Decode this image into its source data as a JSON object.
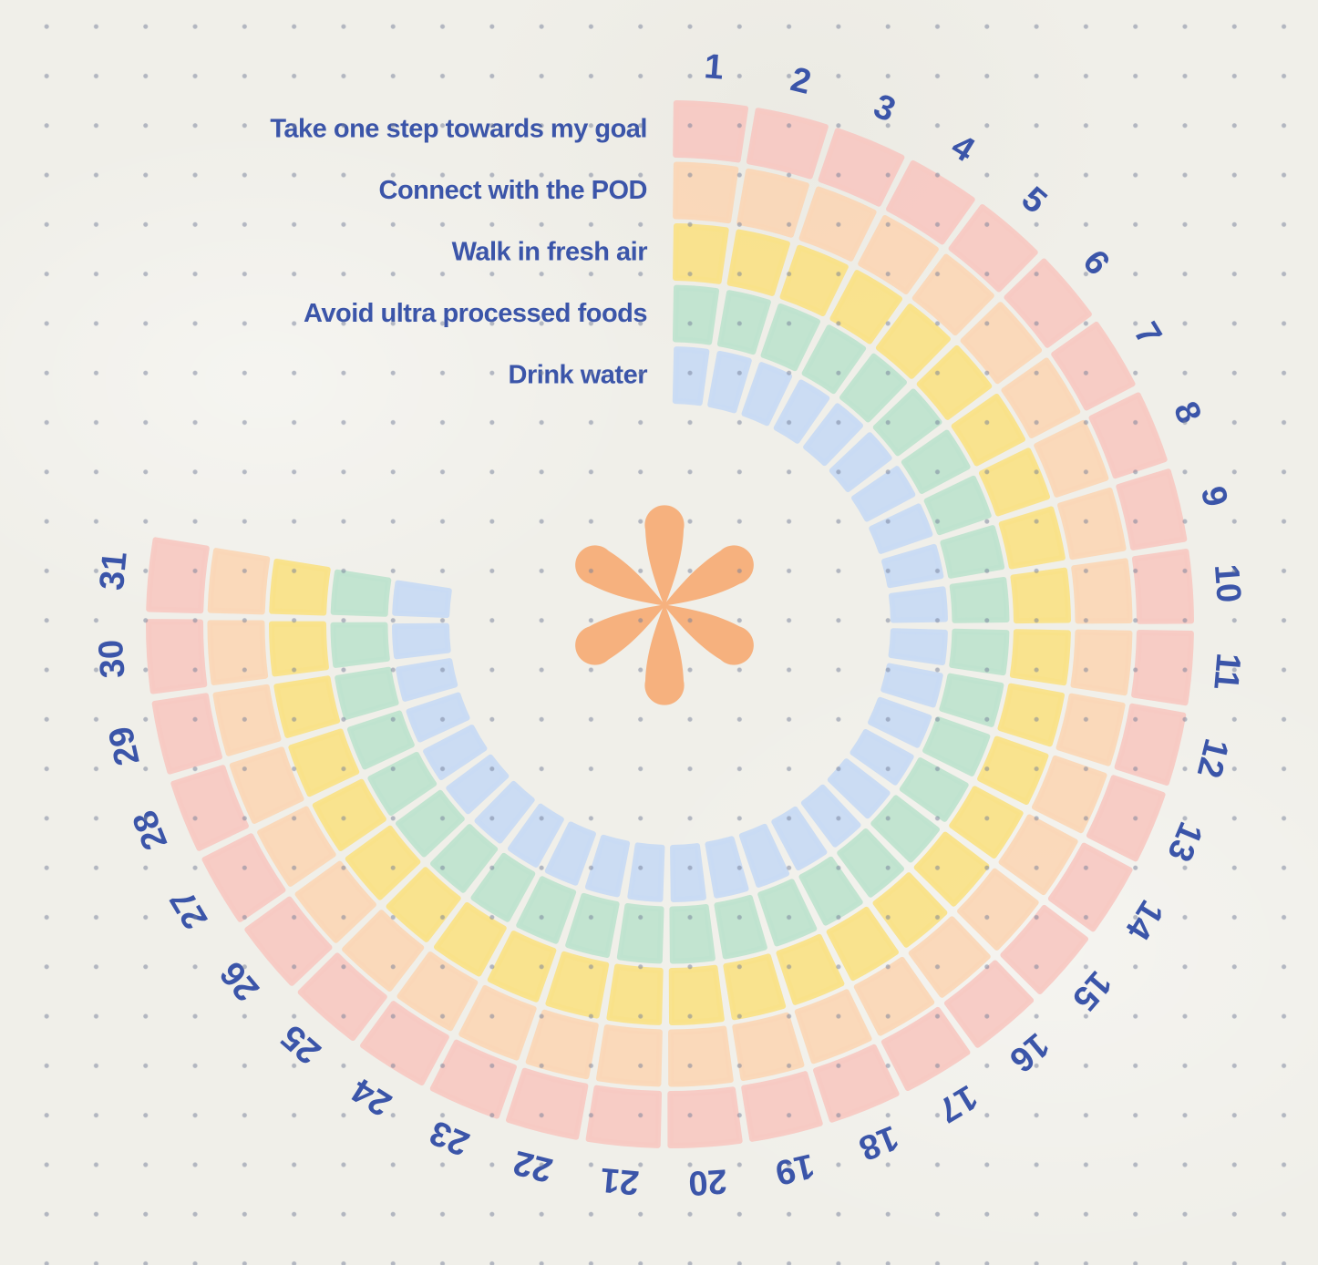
{
  "page": {
    "background_color": "#f0efe9",
    "dot_grid_color": "#747e98",
    "text_color": "#3b55a9"
  },
  "chart_data": {
    "type": "heatmap",
    "layout": "polar",
    "title": "",
    "description": "Circular monthly habit tracker: 31 day segments arranged clockwise from the top around a center flower, five concentric habit rings (outermost to innermost), no days marked complete",
    "days": [
      1,
      2,
      3,
      4,
      5,
      6,
      7,
      8,
      9,
      10,
      11,
      12,
      13,
      14,
      15,
      16,
      17,
      18,
      19,
      20,
      21,
      22,
      23,
      24,
      25,
      26,
      27,
      28,
      29,
      30,
      31
    ],
    "direction": "clockwise",
    "start_angle_deg": 0,
    "sweep_deg": 280,
    "habits": [
      {
        "label": "Take one step towards my goal",
        "color": "#f7c9c3"
      },
      {
        "label": "Connect with the POD",
        "color": "#fad7b7"
      },
      {
        "label": "Walk in fresh air",
        "color": "#f9e289"
      },
      {
        "label": "Avoid ultra processed foods",
        "color": "#bfe3cf"
      },
      {
        "label": "Drink water",
        "color": "#c8daf3"
      }
    ],
    "marked_cells": [],
    "day_label_color": "#3b55a9",
    "habit_label_color": "#3b55a9",
    "center_icon": {
      "name": "asterisk-flower-icon",
      "color": "#f6b17e"
    }
  }
}
